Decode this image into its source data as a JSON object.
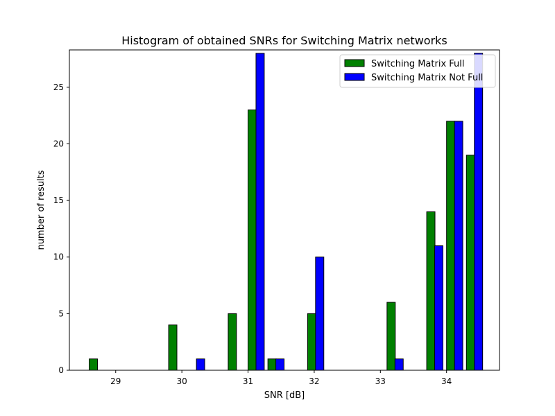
{
  "chart_data": {
    "type": "bar",
    "title": "Histogram of obtained SNRs for Switching Matrix networks",
    "xlabel": "SNR [dB]",
    "ylabel": "number of results",
    "xlim": [
      28.3,
      34.8
    ],
    "ylim": [
      0,
      28.3
    ],
    "xticks": [
      29,
      30,
      31,
      32,
      33,
      34
    ],
    "yticks": [
      0,
      5,
      10,
      15,
      20,
      25
    ],
    "grid": false,
    "legend_position": "top-right",
    "bar_width": 0.125,
    "series": [
      {
        "name": "Switching Matrix Full",
        "color": "#008000",
        "bins": [
          28.6,
          28.9,
          29.2,
          29.5,
          29.8,
          30.1,
          30.4,
          30.7,
          31.0,
          31.3,
          31.6,
          31.9,
          32.2,
          32.5,
          32.8,
          33.1,
          33.4,
          33.7,
          34.0,
          34.3
        ],
        "values": [
          1,
          0,
          0,
          0,
          4,
          0,
          0,
          5,
          23,
          1,
          0,
          5,
          0,
          0,
          0,
          6,
          0,
          14,
          22,
          19
        ]
      },
      {
        "name": "Switching Matrix Not Full",
        "color": "#0000ff",
        "bins": [
          28.72,
          29.02,
          29.32,
          29.62,
          29.92,
          30.22,
          30.52,
          30.82,
          31.12,
          31.42,
          31.72,
          32.02,
          32.32,
          32.62,
          32.92,
          33.22,
          33.52,
          33.82,
          34.12,
          34.42
        ],
        "values": [
          0,
          0,
          0,
          0,
          0,
          1,
          0,
          0,
          28,
          1,
          0,
          10,
          0,
          0,
          0,
          1,
          0,
          11,
          22,
          28
        ]
      }
    ]
  }
}
